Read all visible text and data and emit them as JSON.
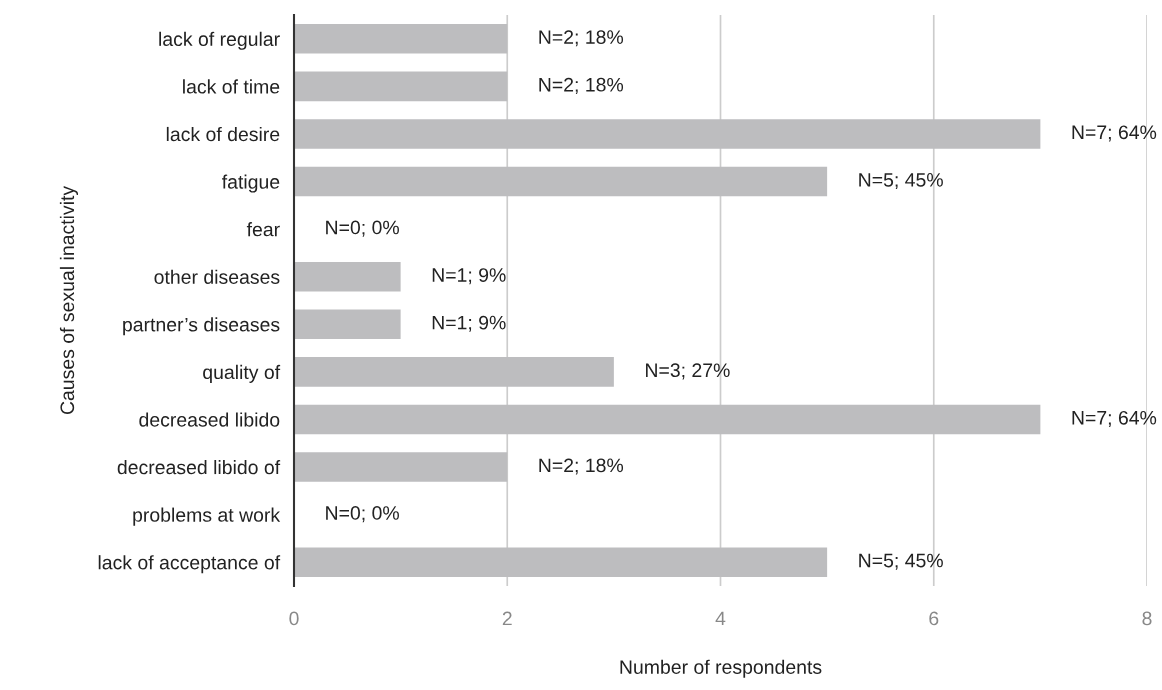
{
  "chart_data": {
    "type": "bar",
    "orientation": "horizontal",
    "xlabel": "Number of respondents",
    "ylabel": "Causes of sexual inactivity",
    "categories": [
      "lack of regular",
      "lack of time",
      "lack of desire",
      "fatigue",
      "fear",
      "other diseases",
      "partner’s diseases",
      "quality of",
      "decreased libido",
      "decreased libido of",
      "problems at work",
      "lack of acceptance of"
    ],
    "values": [
      2,
      2,
      7,
      5,
      0,
      1,
      1,
      3,
      7,
      2,
      0,
      5
    ],
    "value_labels": [
      "N=2; 18%",
      "N=2; 18%",
      "N=7; 64%",
      "N=5; 45%",
      "N=0; 0%",
      "N=1; 9%",
      "N=1; 9%",
      "N=3; 27%",
      "N=7; 64%",
      "N=2; 18%",
      "N=0; 0%",
      "N=5; 45%"
    ],
    "color": "#bdbdbf",
    "xlim": [
      0,
      8
    ],
    "xticks": [
      0,
      2,
      4,
      6,
      8
    ],
    "grid": "x",
    "legend": false
  }
}
